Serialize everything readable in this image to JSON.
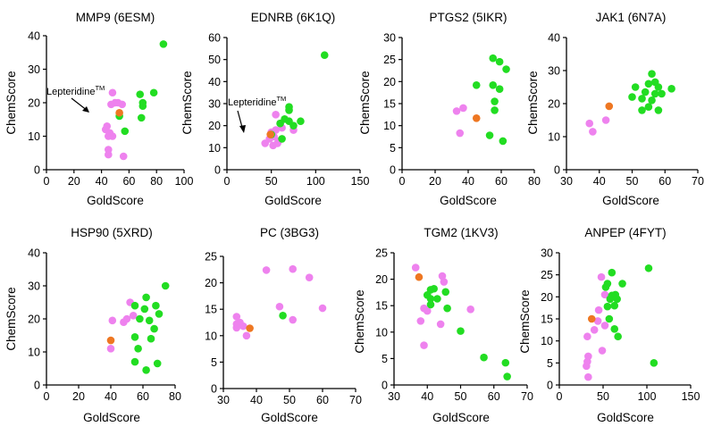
{
  "colors": {
    "pink": "#ee82ee",
    "green": "#22dd22",
    "orange": "#ee7722",
    "axis": "#000000"
  },
  "chart_data": [
    {
      "type": "scatter",
      "title": "MMP9 (6ESM)",
      "xlabel": "GoldScore",
      "ylabel": "ChemScore",
      "xlim": [
        0,
        100
      ],
      "ylim": [
        0,
        40
      ],
      "xticks": [
        0,
        20,
        40,
        60,
        80,
        100
      ],
      "yticks": [
        0,
        10,
        20,
        30,
        40
      ],
      "annotation": {
        "text": "Lepteridine",
        "sup": "TM"
      },
      "series": [
        {
          "name": "pink",
          "color": "pink",
          "points": [
            [
              48,
              23
            ],
            [
              47,
              19.5
            ],
            [
              50,
              20
            ],
            [
              52,
              20
            ],
            [
              55,
              19.5
            ],
            [
              44,
              13
            ],
            [
              43,
              12
            ],
            [
              46,
              11
            ],
            [
              45,
              10
            ],
            [
              48,
              10
            ],
            [
              45,
              6
            ],
            [
              45,
              4.5
            ],
            [
              56,
              4
            ]
          ]
        },
        {
          "name": "green",
          "color": "green",
          "points": [
            [
              85,
              37.5
            ],
            [
              68,
              22.5
            ],
            [
              78,
              23
            ],
            [
              70,
              20
            ],
            [
              53,
              16
            ],
            [
              57,
              11.5
            ],
            [
              69,
              15.5
            ],
            [
              70,
              19
            ]
          ]
        },
        {
          "name": "lepteridine",
          "color": "orange",
          "points": [
            [
              53,
              17
            ]
          ]
        }
      ]
    },
    {
      "type": "scatter",
      "title": "EDNRB (6K1Q)",
      "xlabel": "GoldScore",
      "ylabel": "ChemScore",
      "xlim": [
        0,
        150
      ],
      "ylim": [
        0,
        60
      ],
      "xticks": [
        0,
        50,
        100,
        150
      ],
      "yticks": [
        0,
        10,
        20,
        30,
        40,
        50,
        60
      ],
      "annotation": {
        "text": "Lepteridine",
        "sup": "TM"
      },
      "series": [
        {
          "name": "pink",
          "color": "pink",
          "points": [
            [
              55,
              25
            ],
            [
              60,
              21
            ],
            [
              62,
              19
            ],
            [
              55,
              18
            ],
            [
              53,
              15
            ],
            [
              57,
              12
            ],
            [
              52,
              11
            ],
            [
              43,
              12
            ],
            [
              48,
              14
            ],
            [
              58,
              13
            ],
            [
              75,
              18
            ],
            [
              50,
              17
            ]
          ]
        },
        {
          "name": "green",
          "color": "green",
          "points": [
            [
              110,
              52
            ],
            [
              70,
              28.5
            ],
            [
              70,
              27
            ],
            [
              65,
              23
            ],
            [
              70,
              22
            ],
            [
              60,
              21
            ],
            [
              83,
              22
            ],
            [
              75,
              20
            ],
            [
              62,
              14
            ],
            [
              50,
              16
            ]
          ]
        },
        {
          "name": "lepteridine",
          "color": "orange",
          "points": [
            [
              49,
              16
            ]
          ]
        }
      ]
    },
    {
      "type": "scatter",
      "title": "PTGS2 (5IKR)",
      "xlabel": "GoldScore",
      "ylabel": "ChemScore",
      "xlim": [
        0,
        80
      ],
      "ylim": [
        0,
        30
      ],
      "xticks": [
        0,
        20,
        40,
        60,
        80
      ],
      "yticks": [
        0,
        5,
        10,
        15,
        20,
        25,
        30
      ],
      "series": [
        {
          "name": "pink",
          "color": "pink",
          "points": [
            [
              33,
              13.3
            ],
            [
              37,
              14
            ],
            [
              35,
              8.3
            ]
          ]
        },
        {
          "name": "green",
          "color": "green",
          "points": [
            [
              55,
              25.3
            ],
            [
              59,
              24.5
            ],
            [
              63,
              22.8
            ],
            [
              45,
              19.2
            ],
            [
              55,
              19.2
            ],
            [
              59,
              18.3
            ],
            [
              56,
              15.5
            ],
            [
              56,
              13.5
            ],
            [
              53,
              7.8
            ],
            [
              61,
              6.5
            ]
          ]
        },
        {
          "name": "lepteridine",
          "color": "orange",
          "points": [
            [
              45,
              11.7
            ]
          ]
        }
      ]
    },
    {
      "type": "scatter",
      "title": "JAK1 (6N7A)",
      "xlabel": "GoldScore",
      "ylabel": "ChemScore",
      "xlim": [
        30,
        70
      ],
      "ylim": [
        0,
        40
      ],
      "xticks": [
        30,
        40,
        50,
        60,
        70
      ],
      "yticks": [
        0,
        10,
        20,
        30,
        40
      ],
      "series": [
        {
          "name": "pink",
          "color": "pink",
          "points": [
            [
              37,
              14
            ],
            [
              38,
              11.5
            ],
            [
              42,
              15
            ]
          ]
        },
        {
          "name": "green",
          "color": "green",
          "points": [
            [
              56,
              29
            ],
            [
              55,
              26
            ],
            [
              57,
              26.5
            ],
            [
              51,
              25
            ],
            [
              58,
              25
            ],
            [
              62,
              24.5
            ],
            [
              54,
              23.5
            ],
            [
              57,
              23
            ],
            [
              59,
              23
            ],
            [
              50,
              22
            ],
            [
              53,
              21.5
            ],
            [
              56,
              21
            ],
            [
              55,
              19
            ],
            [
              53,
              18
            ],
            [
              58,
              18
            ]
          ]
        },
        {
          "name": "lepteridine",
          "color": "orange",
          "points": [
            [
              43,
              19.2
            ]
          ]
        }
      ]
    },
    {
      "type": "scatter",
      "title": "HSP90 (5XRD)",
      "xlabel": "GoldScore",
      "ylabel": "ChemScore",
      "xlim": [
        0,
        80
      ],
      "ylim": [
        0,
        40
      ],
      "xticks": [
        0,
        20,
        40,
        60,
        80
      ],
      "yticks": [
        0,
        10,
        20,
        30,
        40
      ],
      "series": [
        {
          "name": "pink",
          "color": "pink",
          "points": [
            [
              41,
              19.5
            ],
            [
              52,
              25
            ],
            [
              50,
              20
            ],
            [
              54,
              21
            ],
            [
              48,
              19
            ],
            [
              40,
              11
            ]
          ]
        },
        {
          "name": "green",
          "color": "green",
          "points": [
            [
              74,
              30
            ],
            [
              62,
              26.5
            ],
            [
              55,
              24
            ],
            [
              68,
              24
            ],
            [
              61,
              23
            ],
            [
              70,
              21.5
            ],
            [
              58,
              20
            ],
            [
              64,
              19.5
            ],
            [
              67,
              17
            ],
            [
              55,
              14.5
            ],
            [
              65,
              14
            ],
            [
              57,
              11
            ],
            [
              55,
              7
            ],
            [
              69,
              6.5
            ],
            [
              62,
              4.5
            ]
          ]
        },
        {
          "name": "lepteridine",
          "color": "orange",
          "points": [
            [
              40,
              13.5
            ]
          ]
        }
      ]
    },
    {
      "type": "scatter",
      "title": "PC (3BG3)",
      "xlabel": "GoldScore",
      "ylabel": "ChemScore",
      "xlim": [
        30,
        70
      ],
      "ylim": [
        0,
        25
      ],
      "xticks": [
        30,
        40,
        50,
        60,
        70
      ],
      "yticks": [
        0,
        5,
        10,
        15,
        20,
        25
      ],
      "series": [
        {
          "name": "pink",
          "color": "pink",
          "points": [
            [
              43,
              22.4
            ],
            [
              51,
              22.6
            ],
            [
              56,
              21
            ],
            [
              34,
              13.6
            ],
            [
              35,
              12.5
            ],
            [
              34,
              12.2
            ],
            [
              36,
              11.8
            ],
            [
              34,
              11.5
            ],
            [
              37,
              10
            ],
            [
              47,
              15.5
            ],
            [
              51,
              13
            ],
            [
              60,
              15.2
            ]
          ]
        },
        {
          "name": "green",
          "color": "green",
          "points": [
            [
              48,
              13.8
            ]
          ]
        },
        {
          "name": "lepteridine",
          "color": "orange",
          "points": [
            [
              38,
              11.4
            ]
          ]
        }
      ]
    },
    {
      "type": "scatter",
      "title": "TGM2 (1KV3)",
      "xlabel": "GoldScore",
      "ylabel": "ChemScore",
      "xlim": [
        30,
        70
      ],
      "ylim": [
        0,
        25
      ],
      "xticks": [
        30,
        40,
        50,
        60,
        70
      ],
      "yticks": [
        0,
        5,
        10,
        15,
        20,
        25
      ],
      "series": [
        {
          "name": "pink",
          "color": "pink",
          "points": [
            [
              36.5,
              22.2
            ],
            [
              44.5,
              20.6
            ],
            [
              45,
              19.5
            ],
            [
              39,
              14.5
            ],
            [
              40,
              14
            ],
            [
              53,
              14.3
            ],
            [
              38,
              12.1
            ],
            [
              44,
              11.5
            ],
            [
              39,
              7.5
            ]
          ]
        },
        {
          "name": "green",
          "color": "green",
          "points": [
            [
              41,
              18
            ],
            [
              42,
              18.2
            ],
            [
              40,
              17
            ],
            [
              45.5,
              17.6
            ],
            [
              41,
              16.3
            ],
            [
              43,
              16.3
            ],
            [
              41,
              15.2
            ],
            [
              46,
              14.5
            ],
            [
              50,
              10.2
            ],
            [
              57,
              5.2
            ],
            [
              63.5,
              4.2
            ],
            [
              64,
              1.6
            ]
          ]
        },
        {
          "name": "lepteridine",
          "color": "orange",
          "points": [
            [
              37.5,
              20.4
            ]
          ]
        }
      ]
    },
    {
      "type": "scatter",
      "title": "ANPEP (4FYT)",
      "xlabel": "GoldScore",
      "ylabel": "ChemScore",
      "xlim": [
        0,
        150
      ],
      "ylim": [
        0,
        30
      ],
      "xticks": [
        0,
        50,
        100,
        150
      ],
      "yticks": [
        0,
        5,
        10,
        15,
        20,
        25,
        30
      ],
      "series": [
        {
          "name": "pink",
          "color": "pink",
          "points": [
            [
              48,
              24.5
            ],
            [
              52,
              20.5
            ],
            [
              45,
              17
            ],
            [
              44,
              14.5
            ],
            [
              52,
              13.5
            ],
            [
              32,
              11
            ],
            [
              33,
              6.5
            ],
            [
              32,
              5.3
            ],
            [
              31,
              4.3
            ],
            [
              33,
              1.8
            ],
            [
              49,
              7.8
            ],
            [
              40,
              12.5
            ]
          ]
        },
        {
          "name": "green",
          "color": "green",
          "points": [
            [
              102,
              26.5
            ],
            [
              60,
              25.5
            ],
            [
              55,
              23
            ],
            [
              53,
              22.2
            ],
            [
              72,
              23
            ],
            [
              60,
              20.3
            ],
            [
              64,
              20.5
            ],
            [
              58,
              19.5
            ],
            [
              66,
              19.5
            ],
            [
              63,
              18
            ],
            [
              55,
              17.8
            ],
            [
              57,
              15
            ],
            [
              63,
              12.7
            ],
            [
              67,
              11
            ],
            [
              108,
              5
            ]
          ]
        },
        {
          "name": "lepteridine",
          "color": "orange",
          "points": [
            [
              37,
              15
            ]
          ]
        }
      ]
    }
  ]
}
